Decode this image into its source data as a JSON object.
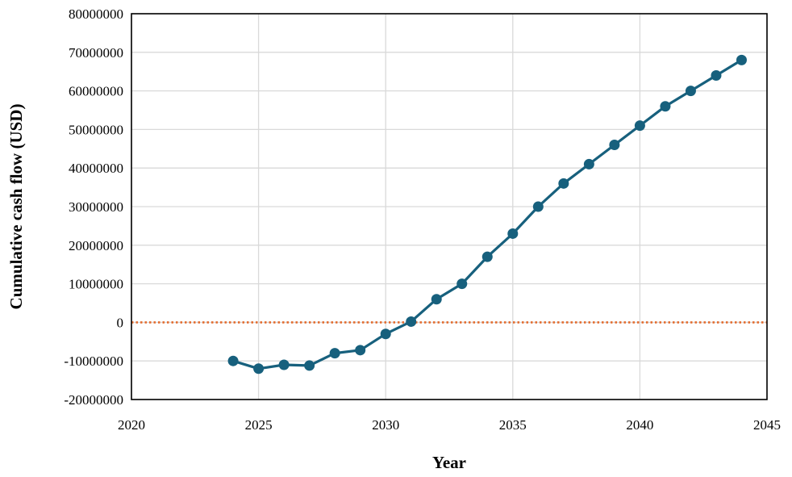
{
  "chart_data": {
    "type": "scatter",
    "xlabel": "Year",
    "ylabel": "Cumulative cash flow (USD)",
    "xlim": [
      2020,
      2045
    ],
    "ylim": [
      -20000000,
      80000000
    ],
    "x_ticks": [
      2020,
      2025,
      2030,
      2035,
      2040,
      2045
    ],
    "y_ticks": [
      -20000000,
      -10000000,
      0,
      10000000,
      20000000,
      30000000,
      40000000,
      50000000,
      60000000,
      70000000,
      80000000
    ],
    "grid": true,
    "legend": "none",
    "reference_line": {
      "y": 0,
      "style": "dotted",
      "color": "#E46C2E"
    },
    "series": [
      {
        "color": "#17607D",
        "marker": "circle",
        "line": "solid",
        "x": [
          2024,
          2025,
          2026,
          2027,
          2028,
          2029,
          2030,
          2031,
          2032,
          2033,
          2034,
          2035,
          2036,
          2037,
          2038,
          2039,
          2040,
          2041,
          2042,
          2043,
          2044
        ],
        "y": [
          -10000000,
          -12000000,
          -11000000,
          -11200000,
          -8000000,
          -7200000,
          -3000000,
          200000,
          6000000,
          10000000,
          17000000,
          23000000,
          30000000,
          36000000,
          41000000,
          46000000,
          51000000,
          56000000,
          60000000,
          64000000,
          68000000
        ]
      }
    ]
  }
}
